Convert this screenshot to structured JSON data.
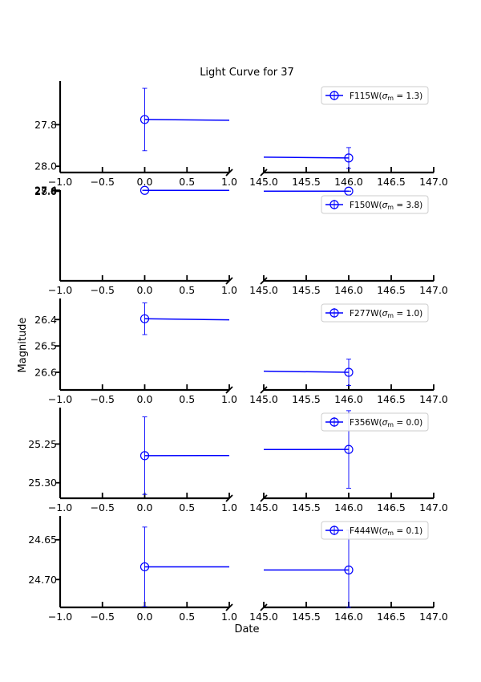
{
  "chart_data": {
    "type": "line",
    "title": "Light Curve for 37",
    "xlabel": "Date",
    "ylabel": "Magnitude",
    "y_inverted": true,
    "broken_x_axis": true,
    "x_segments": [
      {
        "xlim": [
          -1.0,
          1.0
        ],
        "ticks": [
          -1.0,
          -0.5,
          0.0,
          0.5,
          1.0
        ],
        "tick_labels": [
          "−1.0",
          "−0.5",
          "0.0",
          "0.5",
          "1.0"
        ]
      },
      {
        "xlim": [
          145.0,
          147.0
        ],
        "ticks": [
          145.0,
          145.5,
          146.0,
          146.5,
          147.0
        ],
        "tick_labels": [
          "145.0",
          "145.5",
          "146.0",
          "146.5",
          "147.0"
        ]
      }
    ],
    "color": "#0000ff",
    "legend_position": "upper right",
    "grid": false,
    "panels": [
      {
        "filter": "F115W",
        "legend": "F115W(σm = 1.3)",
        "legend_main": "F115W(",
        "legend_sigma": "σ",
        "legend_sub": "m",
        "legend_rest": " = 1.3)",
        "ylim_top": 27.59,
        "ylim_bottom": 28.03,
        "yticks": [
          27.8,
          28.0
        ],
        "ytick_labels": [
          "27.8",
          "28.0"
        ],
        "points": [
          {
            "x": 0.0,
            "y": 27.775,
            "yerr": 0.15
          },
          {
            "x": 146.0,
            "y": 27.96,
            "yerr": 0.05
          }
        ]
      },
      {
        "filter": "F150W",
        "legend": "F150W(σm = 3.8)",
        "legend_main": "F150W(",
        "legend_sigma": "σ",
        "legend_sub": "m",
        "legend_rest": " = 3.8)",
        "ylim_top": 27.35,
        "ylim_bottom": 80.03,
        "yticks": [
          27.4,
          27.6,
          27.8,
          28.0
        ],
        "ytick_labels": [
          "27.4",
          "27.6",
          "27.8",
          "28.0"
        ],
        "points": [
          {
            "x": 0.0,
            "y": 27.46,
            "yerr": 0.11
          },
          {
            "x": 146.0,
            "y": 27.94,
            "yerr": 0.04
          }
        ]
      },
      {
        "filter": "F277W",
        "legend": "F277W(σm = 1.0)",
        "legend_main": "F277W(",
        "legend_sigma": "σ",
        "legend_sub": "m",
        "legend_rest": " = 1.0)",
        "ylim_top": 26.32,
        "ylim_bottom": 26.667,
        "yticks": [
          26.4,
          26.5,
          26.6
        ],
        "ytick_labels": [
          "26.4",
          "26.5",
          "26.6"
        ],
        "points": [
          {
            "x": 0.0,
            "y": 26.397,
            "yerr": 0.06
          },
          {
            "x": 146.0,
            "y": 26.6,
            "yerr": 0.05
          }
        ]
      },
      {
        "filter": "F356W",
        "legend": "F356W(σm = 0.0)",
        "legend_main": "F356W(",
        "legend_sigma": "σ",
        "legend_sub": "m",
        "legend_rest": " = 0.0)",
        "ylim_top": 25.203,
        "ylim_bottom": 25.32,
        "yticks": [
          25.25,
          25.3
        ],
        "ytick_labels": [
          "25.25",
          "25.30"
        ],
        "points": [
          {
            "x": 0.0,
            "y": 25.265,
            "yerr": 0.05
          },
          {
            "x": 146.0,
            "y": 25.257,
            "yerr": 0.05
          }
        ]
      },
      {
        "filter": "F444W",
        "legend": "F444W(σm = 0.1)",
        "legend_main": "F444W(",
        "legend_sigma": "σ",
        "legend_sub": "m",
        "legend_rest": " = 0.1)",
        "ylim_top": 24.62,
        "ylim_bottom": 24.735,
        "yticks": [
          24.65,
          24.7
        ],
        "ytick_labels": [
          "24.65",
          "24.70"
        ],
        "points": [
          {
            "x": 0.0,
            "y": 24.684,
            "yerr": 0.05
          },
          {
            "x": 146.0,
            "y": 24.688,
            "yerr": 0.05
          }
        ]
      }
    ]
  }
}
